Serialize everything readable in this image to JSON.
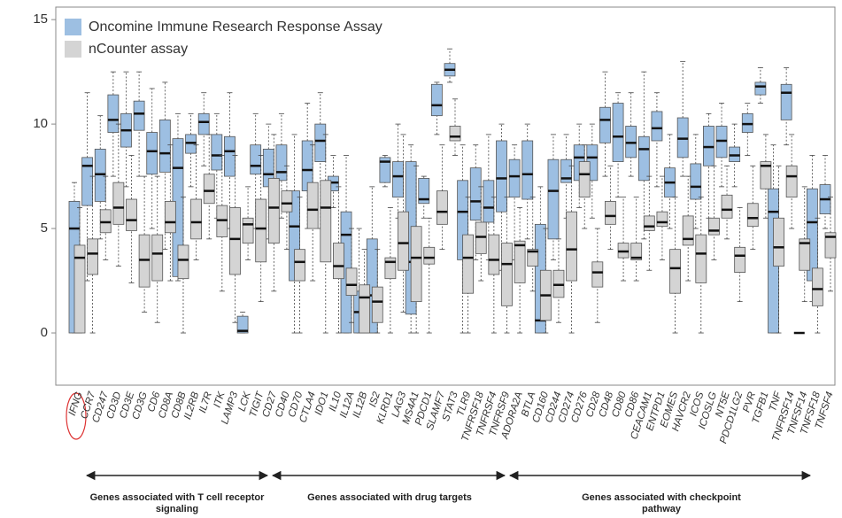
{
  "chart_data": {
    "type": "boxplot",
    "categories": [
      "IFNG",
      "CCR7",
      "CD247",
      "CD3D",
      "CD3E",
      "CD3G",
      "CD6",
      "CD8A",
      "CD8B",
      "IL2RB",
      "IL7R",
      "ITK",
      "LAMP3",
      "LCK",
      "TIGIT",
      "CD27",
      "CD40",
      "CD70",
      "CTLA4",
      "IDO1",
      "IL10",
      "IL12A",
      "IL12B",
      "IS2",
      "KLRD1",
      "LAG3",
      "MS4A1",
      "PDCD1",
      "SLAMF7",
      "STAT3",
      "TLR9",
      "TNFRSF18",
      "TNFRSF4",
      "TNFRSF9",
      "ADORA2A",
      "BTLA",
      "CD160",
      "CD244",
      "CD274",
      "CD276",
      "CD28",
      "CD48",
      "CD80",
      "CD86",
      "CEACAM1",
      "ENTPD1",
      "EOMES",
      "HAVCR2",
      "ICOS",
      "ICOSLG",
      "NT5E",
      "PDCD1LG2",
      "PVR",
      "TGFB1",
      "TNF",
      "TNFRSF14",
      "TNFSF14",
      "TNFSF18",
      "TNFSF4"
    ],
    "series": [
      {
        "name": "Oncomine Immune Research Response Assay",
        "color": "#9dbfe2",
        "values": [
          [
            0,
            0,
            5.0,
            6.3,
            7.2
          ],
          [
            2.5,
            6.1,
            8.0,
            8.4,
            11.5
          ],
          [
            4.5,
            6.3,
            7.6,
            8.8,
            10.4
          ],
          [
            7.5,
            9.6,
            10.2,
            11.4,
            12.5
          ],
          [
            7,
            8.9,
            9.7,
            10.5,
            12.5
          ],
          [
            7.5,
            9.7,
            10.5,
            11.1,
            12.5
          ],
          [
            5,
            7.6,
            8.7,
            9.6,
            11.7
          ],
          [
            4,
            7.7,
            8.6,
            10.2,
            12.0
          ],
          [
            2.5,
            2.7,
            7.9,
            9.3,
            10.5
          ],
          [
            7,
            8.6,
            9.1,
            9.5,
            10.5
          ],
          [
            8,
            9.5,
            10.1,
            10.5,
            11.5
          ],
          [
            5.5,
            7.8,
            8.5,
            9.5,
            10.5
          ],
          [
            5,
            7.5,
            8.7,
            9.4,
            11.5
          ],
          [
            0,
            0,
            0.1,
            0.8,
            1.0
          ],
          [
            5,
            7.6,
            8.0,
            9.0,
            10.5
          ],
          [
            4.5,
            7.0,
            7.6,
            8.8,
            10.0
          ],
          [
            5.5,
            7.3,
            7.7,
            9.0,
            10.5
          ],
          [
            0,
            2.5,
            5.1,
            6.8,
            9.5
          ],
          [
            5,
            6.8,
            7.8,
            9.2,
            11
          ],
          [
            5,
            8.2,
            9.2,
            10,
            11.5
          ],
          [
            6,
            6.8,
            7.2,
            7.5,
            8.5
          ],
          [
            0,
            0,
            4.7,
            5.8,
            8.5
          ],
          [
            0,
            0,
            1.0,
            2.0,
            5.0
          ],
          [
            0,
            0,
            1.8,
            4.5,
            7.0
          ],
          [
            7,
            7.2,
            8.2,
            8.4,
            8.5
          ],
          [
            5.5,
            6.5,
            7.5,
            8.2,
            10
          ],
          [
            0,
            0.9,
            3.4,
            8.2,
            9.0
          ],
          [
            5.5,
            6.2,
            6.4,
            7.4,
            7.5
          ],
          [
            9.5,
            10.4,
            10.9,
            11.9,
            12
          ],
          [
            12,
            12.3,
            12.6,
            12.9,
            13.6
          ],
          [
            0,
            3.5,
            5.8,
            7.3,
            9.0
          ],
          [
            3.5,
            5.4,
            6.3,
            7.9,
            9.0
          ],
          [
            3.5,
            5.3,
            6.0,
            7.3,
            9.5
          ],
          [
            3,
            5.8,
            7.4,
            9.2,
            10
          ],
          [
            3.5,
            6.5,
            7.5,
            8.3,
            9.0
          ],
          [
            4.5,
            6.4,
            7.6,
            9.2,
            10
          ],
          [
            0,
            0,
            0.6,
            5.2,
            7.0
          ],
          [
            3.5,
            4.5,
            6.8,
            8.3,
            9.5
          ],
          [
            5.5,
            7.2,
            7.4,
            8.3,
            9.5
          ],
          [
            6,
            7.3,
            8.4,
            9.0,
            10
          ],
          [
            5.5,
            7.3,
            8.4,
            9.0,
            10
          ],
          [
            7.5,
            9.1,
            10.2,
            10.8,
            12.5
          ],
          [
            6.5,
            8.2,
            9.4,
            11,
            11.5
          ],
          [
            7.5,
            8.4,
            9.1,
            9.9,
            11.5
          ],
          [
            4.5,
            7.3,
            8.8,
            9.4,
            12.5
          ],
          [
            7,
            9.2,
            9.8,
            10.6,
            11.5
          ],
          [
            5,
            6.5,
            7.2,
            7.9,
            9.5
          ],
          [
            7.5,
            8.4,
            9.3,
            10.3,
            13.0
          ],
          [
            5,
            6.4,
            7.0,
            8.1,
            9.5
          ],
          [
            5.5,
            8.0,
            8.9,
            9.9,
            10.5
          ],
          [
            7,
            8.4,
            9.2,
            9.9,
            11.0
          ],
          [
            7,
            8.2,
            8.5,
            8.9,
            10.0
          ],
          [
            8.5,
            9.6,
            10.0,
            10.5,
            11.0
          ],
          [
            11,
            11.4,
            11.8,
            12.0,
            12.7
          ],
          [
            0,
            0,
            5.8,
            6.9,
            9.0
          ],
          [
            9,
            10.2,
            11.5,
            11.9,
            12.7
          ],
          [
            0,
            0,
            0,
            0,
            0
          ],
          [
            1.5,
            2.5,
            5.3,
            6.9,
            8.5
          ],
          [
            5,
            5.7,
            6.4,
            7.1,
            8.5
          ]
        ]
      },
      {
        "name": "nCounter assay",
        "color": "#d4d4d4",
        "values": [
          [
            0,
            0,
            3.6,
            4.2,
            6.0
          ],
          [
            0,
            2.8,
            3.8,
            4.5,
            7.5
          ],
          [
            3.5,
            4.8,
            5.3,
            5.9,
            7.5
          ],
          [
            3.2,
            5.2,
            6.0,
            7.2,
            10.0
          ],
          [
            2.4,
            4.9,
            5.4,
            6.4,
            8.5
          ],
          [
            1,
            2.2,
            3.5,
            4.7,
            7.5
          ],
          [
            0.5,
            2.5,
            3.8,
            4.7,
            7.5
          ],
          [
            2.5,
            4.8,
            5.3,
            6.3,
            9.0
          ],
          [
            0,
            2.6,
            3.5,
            4.2,
            6.5
          ],
          [
            3.5,
            4.5,
            5.3,
            6.4,
            9.0
          ],
          [
            4.5,
            6.2,
            6.8,
            7.6,
            9.5
          ],
          [
            2.0,
            4.6,
            5.4,
            6.1,
            8.5
          ],
          [
            0.5,
            2.8,
            4.5,
            6.0,
            8.5
          ],
          [
            3.5,
            4.3,
            5.2,
            5.5,
            7.0
          ],
          [
            1.5,
            3.4,
            5.0,
            6.4,
            8.5
          ],
          [
            2,
            4.3,
            6.0,
            7.4,
            9.5
          ],
          [
            4,
            5.8,
            6.2,
            6.8,
            8.0
          ],
          [
            0,
            2.5,
            3.4,
            4.0,
            6.5
          ],
          [
            2.5,
            5.0,
            5.9,
            7.2,
            9.0
          ],
          [
            0,
            3.4,
            6.0,
            7.3,
            9.5
          ],
          [
            0,
            2.6,
            3.2,
            4.3,
            7.0
          ],
          [
            0.5,
            1.8,
            2.3,
            3.1,
            5.0
          ],
          [
            0,
            0,
            1.7,
            2.3,
            4.0
          ],
          [
            0,
            0.5,
            1.5,
            2.2,
            4.0
          ],
          [
            0,
            2.6,
            3.4,
            3.6,
            6.0
          ],
          [
            1.0,
            3.0,
            4.3,
            5.8,
            9.5
          ],
          [
            0,
            1.5,
            3.6,
            5.1,
            8.0
          ],
          [
            0,
            3.3,
            3.6,
            4.1,
            5.5
          ],
          [
            4,
            5.2,
            5.8,
            6.8,
            9.0
          ],
          [
            8.5,
            9.2,
            9.4,
            9.9,
            11.2
          ],
          [
            0,
            1.9,
            3.6,
            4.7,
            6.5
          ],
          [
            2.5,
            3.8,
            4.6,
            5.3,
            7.0
          ],
          [
            0,
            2.8,
            3.5,
            4.7,
            6.5
          ],
          [
            0,
            1.3,
            3.3,
            4.3,
            6.5
          ],
          [
            0,
            2.4,
            4.2,
            4.4,
            6.0
          ],
          [
            2,
            3.2,
            3.9,
            4.0,
            6.5
          ],
          [
            0,
            0.6,
            1.8,
            3.0,
            5.0
          ],
          [
            0.5,
            1.7,
            2.3,
            3.0,
            4.5
          ],
          [
            0,
            2.5,
            4.0,
            5.8,
            8.0
          ],
          [
            5,
            6.5,
            7.6,
            8.2,
            9.0
          ],
          [
            0.5,
            2.2,
            2.9,
            3.4,
            5.0
          ],
          [
            4,
            5.2,
            5.6,
            6.3,
            8.0
          ],
          [
            2.5,
            3.6,
            3.9,
            4.3,
            6.5
          ],
          [
            2.5,
            3.5,
            3.6,
            4.3,
            6.5
          ],
          [
            3,
            4.9,
            5.1,
            5.6,
            7.5
          ],
          [
            3.5,
            5.1,
            5.3,
            5.8,
            7.5
          ],
          [
            0,
            1.9,
            3.1,
            4.0,
            6.5
          ],
          [
            2.5,
            4.2,
            4.5,
            5.6,
            7.5
          ],
          [
            0,
            2.4,
            3.8,
            4.7,
            6.5
          ],
          [
            3.5,
            4.7,
            4.9,
            5.5,
            8.0
          ],
          [
            4.5,
            5.5,
            5.9,
            6.6,
            8.0
          ],
          [
            1.5,
            2.9,
            3.7,
            4.1,
            6.0
          ],
          [
            4,
            5.1,
            5.5,
            6.2,
            8.0
          ],
          [
            5.5,
            6.9,
            8.0,
            8.2,
            9.5
          ],
          [
            0,
            3.2,
            4.1,
            5.5,
            8.0
          ],
          [
            5,
            6.5,
            7.5,
            8.0,
            9.5
          ],
          [
            1.5,
            3.0,
            4.3,
            4.5,
            7.0
          ],
          [
            0,
            1.3,
            2.1,
            3.1,
            5.5
          ],
          [
            2,
            3.6,
            4.6,
            4.8,
            6.5
          ]
        ]
      }
    ],
    "ylim": [
      -2.5,
      15.6
    ],
    "yticks": [
      0,
      5,
      10,
      15
    ],
    "annotations": [
      "Genes associated with T cell receptor signaling",
      "Genes associated with drug targets",
      "Genes associated with checkpoint pathway"
    ]
  }
}
